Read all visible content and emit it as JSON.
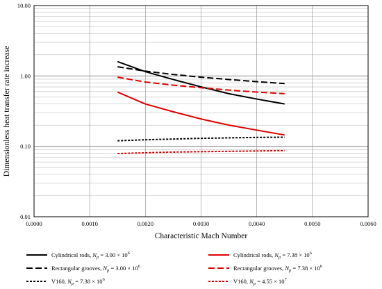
{
  "chart_data": {
    "type": "line",
    "title": "",
    "xlabel": "Characteristic Mach Number",
    "ylabel": "Dimensionless heat transfer rate increase",
    "xlim": [
      0.0,
      0.006
    ],
    "ylim": [
      0.01,
      10.0
    ],
    "yscale": "log",
    "grid": true,
    "legend_placement": "bottom",
    "x_ticks": [
      "0.0000",
      "0.0010",
      "0.0020",
      "0.0030",
      "0.0040",
      "0.0050",
      "0.0060"
    ],
    "y_ticks": [
      "0.01",
      "0.10",
      "1.00",
      "10.00"
    ],
    "series": [
      {
        "name_parts": [
          "Cylindrical rods, ",
          "N",
          "p",
          " = 3.00 × 10",
          "6"
        ],
        "color": "#000000",
        "dash": "solid",
        "x": [
          0.0015,
          0.002,
          0.0025,
          0.003,
          0.0035,
          0.004,
          0.0045
        ],
        "y": [
          1.6,
          1.15,
          0.89,
          0.7,
          0.56,
          0.47,
          0.4
        ]
      },
      {
        "name_parts": [
          "Cylindrical rods, ",
          "N",
          "p",
          " = 7.38 × 10",
          "6"
        ],
        "color": "#e00000",
        "dash": "solid",
        "x": [
          0.0015,
          0.002,
          0.0025,
          0.003,
          0.0035,
          0.004,
          0.0045
        ],
        "y": [
          0.59,
          0.4,
          0.31,
          0.245,
          0.2,
          0.17,
          0.145
        ]
      },
      {
        "name_parts": [
          "Rectangular grooves, ",
          "N",
          "p",
          " = 3.00 × 10",
          "6"
        ],
        "color": "#000000",
        "dash": "long",
        "x": [
          0.0015,
          0.002,
          0.0025,
          0.003,
          0.0035,
          0.004,
          0.0045
        ],
        "y": [
          1.35,
          1.17,
          1.05,
          0.96,
          0.89,
          0.83,
          0.78
        ]
      },
      {
        "name_parts": [
          "Rectangular grooves, ",
          "N",
          "p",
          " = 7.38 × 10",
          "6"
        ],
        "color": "#e00000",
        "dash": "long",
        "x": [
          0.0015,
          0.002,
          0.0025,
          0.003,
          0.0035,
          0.004,
          0.0045
        ],
        "y": [
          0.96,
          0.82,
          0.74,
          0.68,
          0.63,
          0.59,
          0.56
        ]
      },
      {
        "name_parts": [
          "V160, ",
          "N",
          "p",
          " = 7.38 × 10",
          "6"
        ],
        "color": "#000000",
        "dash": "short",
        "x": [
          0.0015,
          0.002,
          0.0025,
          0.003,
          0.0035,
          0.004,
          0.0045
        ],
        "y": [
          0.12,
          0.124,
          0.127,
          0.13,
          0.132,
          0.134,
          0.135
        ]
      },
      {
        "name_parts": [
          "V160, ",
          "N",
          "p",
          " = 4.55 × 10",
          "7"
        ],
        "color": "#e00000",
        "dash": "short",
        "x": [
          0.0015,
          0.002,
          0.0025,
          0.003,
          0.0035,
          0.004,
          0.0045
        ],
        "y": [
          0.079,
          0.081,
          0.083,
          0.084,
          0.085,
          0.086,
          0.087
        ]
      }
    ]
  }
}
